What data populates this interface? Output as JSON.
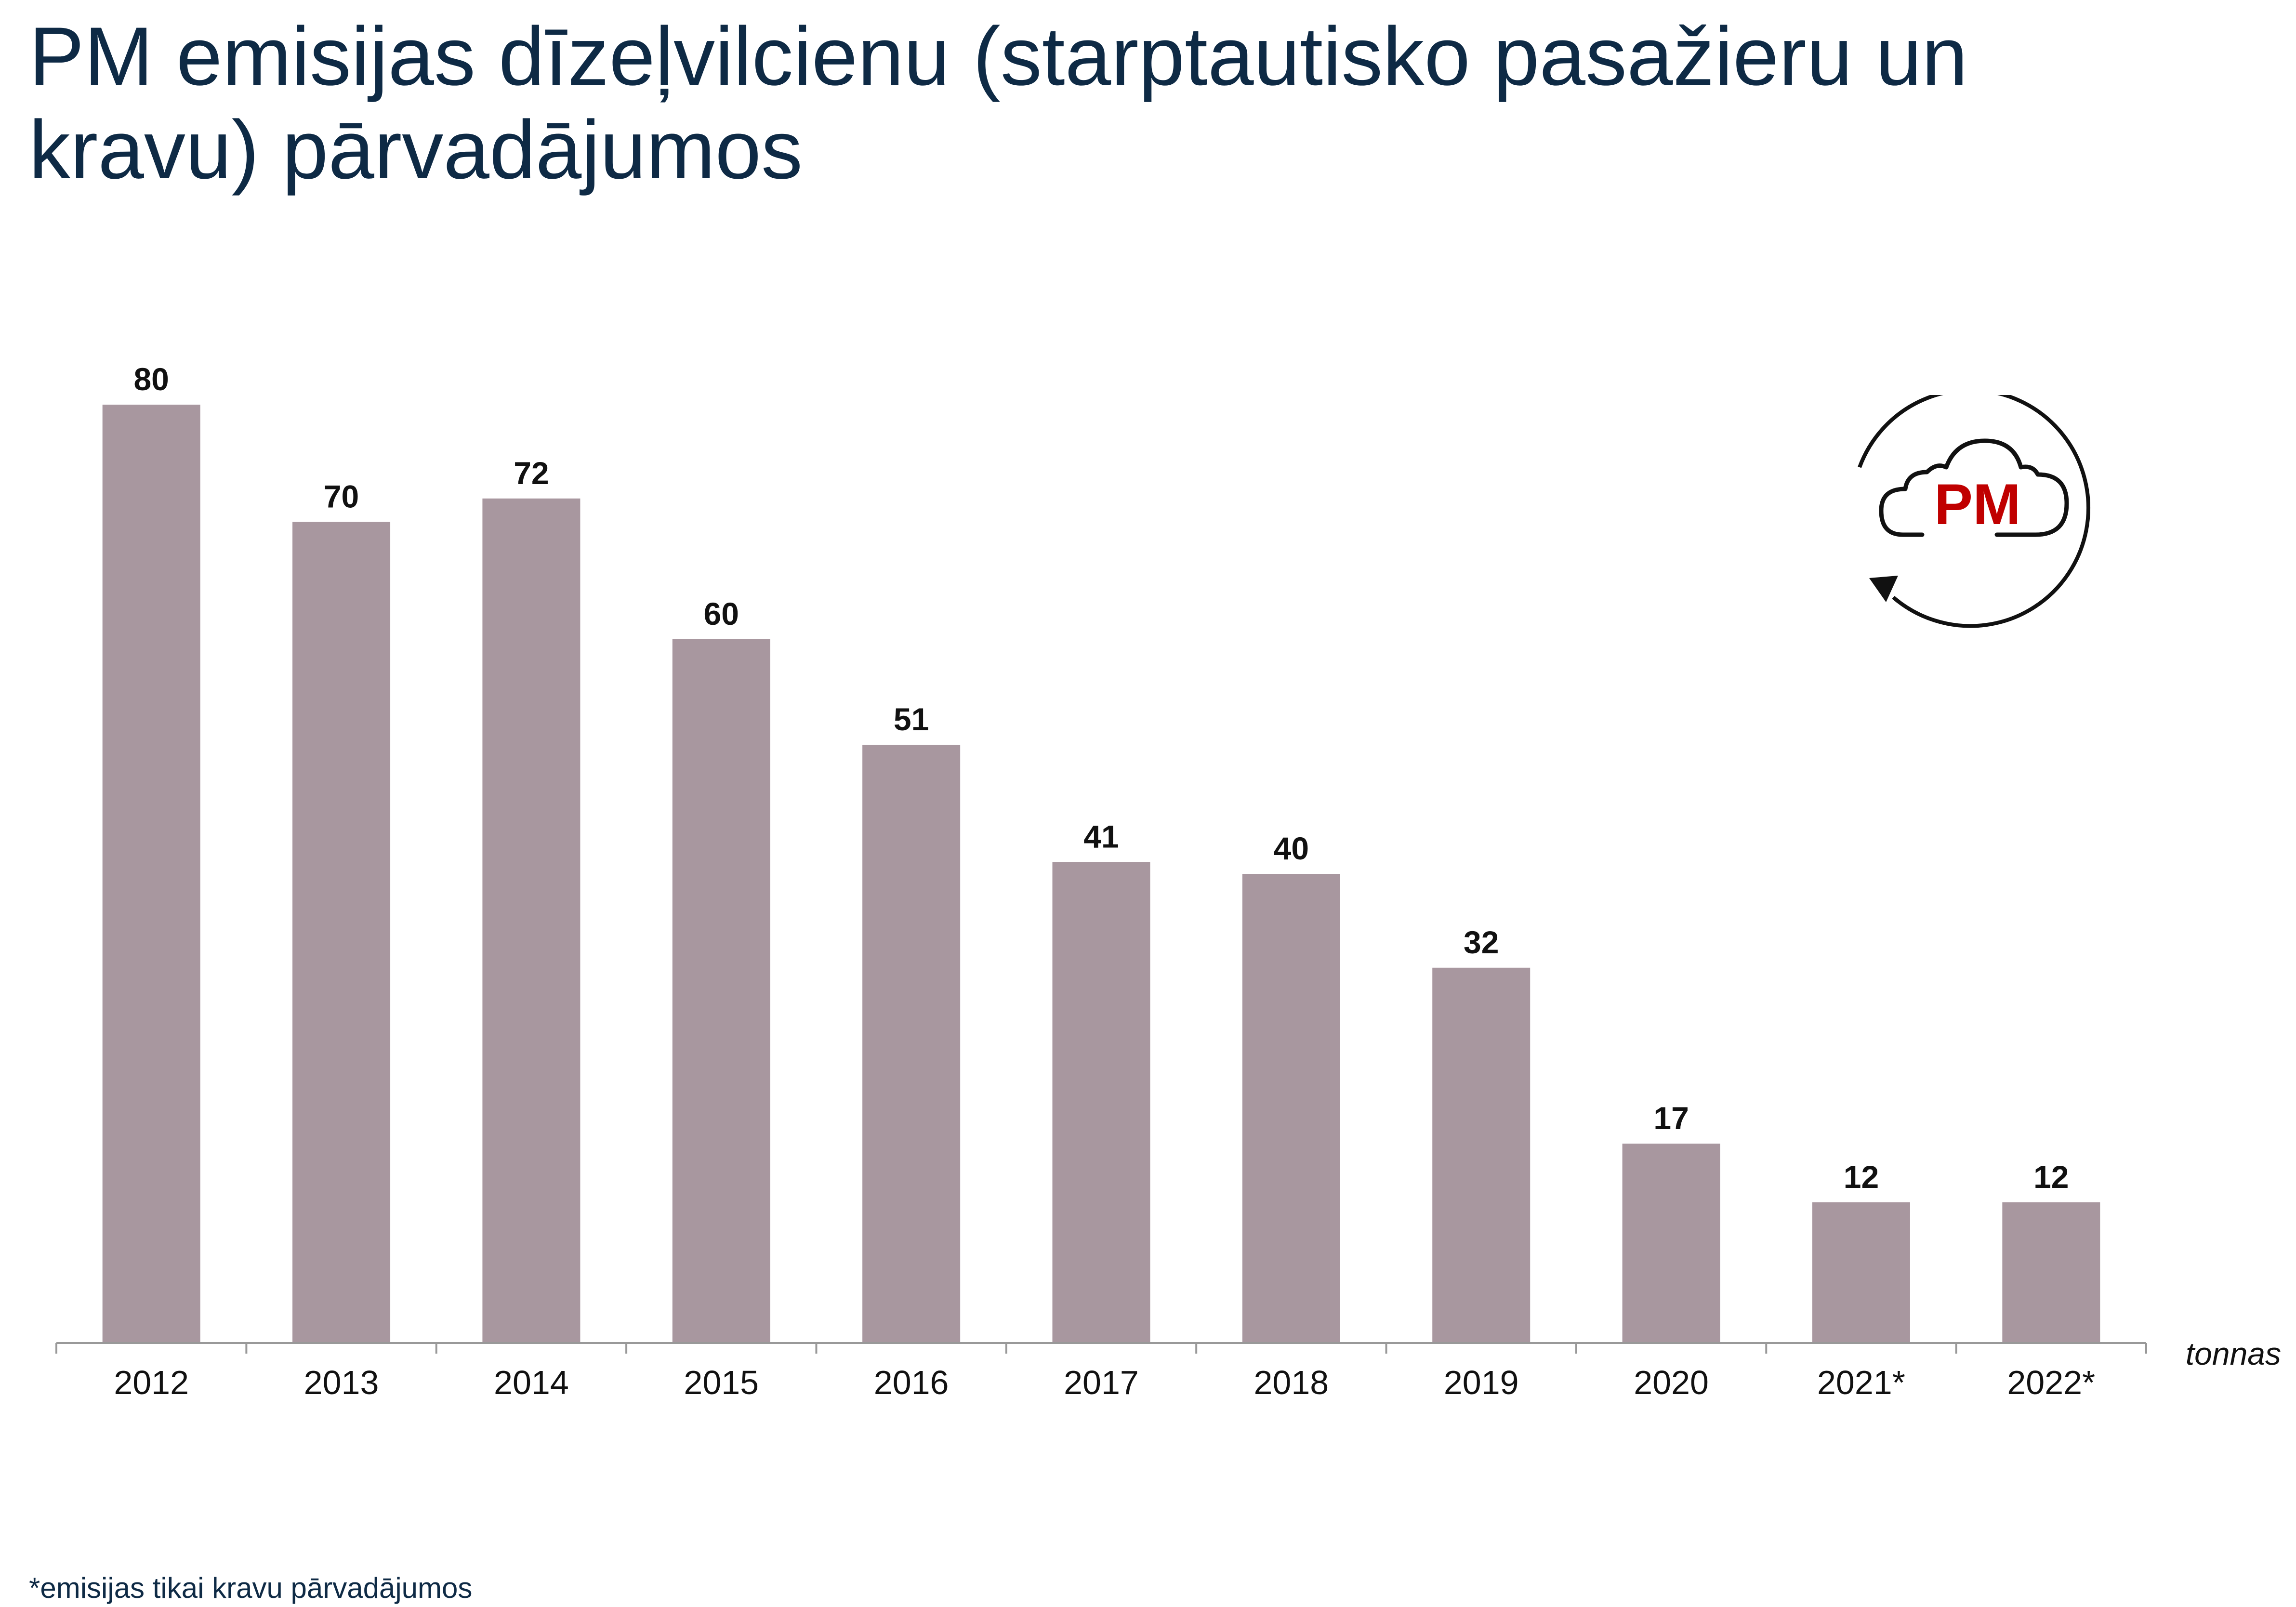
{
  "title": "PM emisijas dīzeļvilcienu (starptautisko pasažieru un kravu) pārvadājumos",
  "footnote": "*emisijas tikai kravu pārvadājumos",
  "logo_text": "PM",
  "colors": {
    "bar": "#a8979f",
    "title": "#0e2a45",
    "logo_accent": "#c00000",
    "axis": "#999999"
  },
  "chart_data": {
    "type": "bar",
    "categories": [
      "2012",
      "2013",
      "2014",
      "2015",
      "2016",
      "2017",
      "2018",
      "2019",
      "2020",
      "2021*",
      "2022*"
    ],
    "values": [
      80,
      70,
      72,
      60,
      51,
      41,
      40,
      32,
      17,
      12,
      12
    ],
    "unit_label": "tonnas",
    "ylim": [
      0,
      80
    ],
    "data_labels": true,
    "grid": false,
    "legend": "none"
  }
}
